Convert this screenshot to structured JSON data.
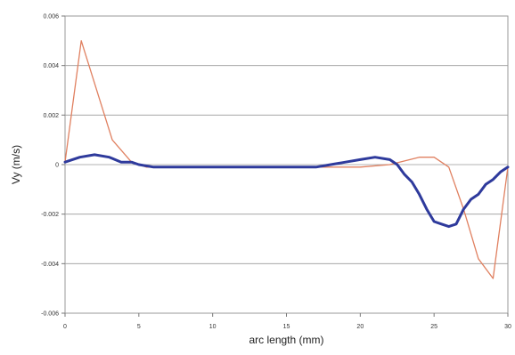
{
  "chart_data": {
    "type": "line",
    "xlabel": "arc length (mm)",
    "ylabel": "Vy (m/s)",
    "xlim": [
      0,
      30
    ],
    "ylim": [
      -0.006,
      0.006
    ],
    "x_ticks": [
      0,
      5,
      10,
      15,
      20,
      25,
      30
    ],
    "y_ticks": [
      0.006,
      0.004,
      0.002,
      0,
      -0.002,
      -0.004,
      -0.006
    ],
    "x_tick_labels": [
      "0",
      "5",
      "10",
      "15",
      "20",
      "25",
      "30"
    ],
    "y_tick_labels": [
      "0.006",
      "0.004",
      "0.002",
      "0",
      "-0.002",
      "-0.004",
      "-0.006"
    ],
    "grid": "horizontal",
    "legend": "none",
    "series": [
      {
        "color": "#e08060",
        "x": [
          0,
          1.1,
          3.2,
          4.5,
          5.5,
          10,
          15,
          20,
          22,
          24,
          25,
          26,
          27,
          28,
          29,
          30
        ],
        "y": [
          0.0001,
          0.005,
          0.001,
          0.0001,
          -0.0001,
          -0.0001,
          -0.0001,
          -0.0001,
          0,
          0.0003,
          0.0003,
          -0.0001,
          -0.0018,
          -0.0038,
          -0.0046,
          -0.0001
        ]
      },
      {
        "color": "#2e3a9c",
        "x": [
          0,
          1,
          2,
          3,
          3.8,
          4.5,
          5,
          6,
          10,
          15,
          17,
          18,
          19,
          20,
          21,
          22,
          22.5,
          23,
          23.5,
          24,
          24.5,
          25,
          25.5,
          26,
          26.5,
          27,
          27.5,
          28,
          28.5,
          29,
          29.5,
          30
        ],
        "y": [
          0.0001,
          0.0003,
          0.0004,
          0.0003,
          0.0001,
          0.0001,
          0,
          -0.0001,
          -0.0001,
          -0.0001,
          -0.0001,
          0,
          0.0001,
          0.0002,
          0.0003,
          0.0002,
          0,
          -0.0004,
          -0.0007,
          -0.0012,
          -0.0018,
          -0.0023,
          -0.0024,
          -0.0025,
          -0.0024,
          -0.0018,
          -0.0014,
          -0.0012,
          -0.0008,
          -0.0006,
          -0.0003,
          -0.0001
        ]
      }
    ]
  }
}
